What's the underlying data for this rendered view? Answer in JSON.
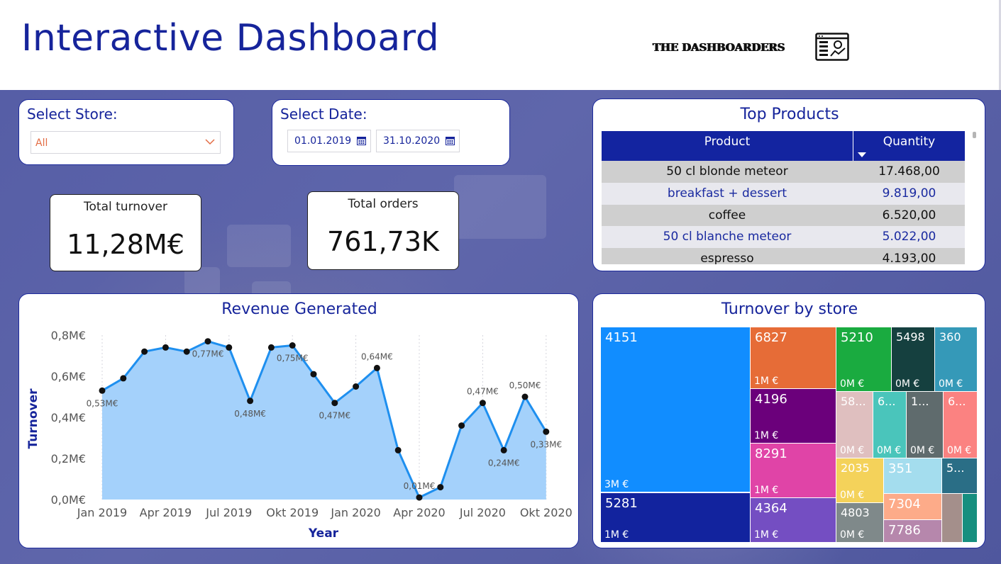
{
  "header": {
    "title": "Interactive Dashboard",
    "logo_text": "THE DASHBOARDERS"
  },
  "store_slicer": {
    "label": "Select Store:",
    "value": "All"
  },
  "date_slicer": {
    "label": "Select Date:",
    "start": "01.01.2019",
    "end": "31.10.2020"
  },
  "kpis": {
    "turnover": {
      "label": "Total turnover",
      "value": "11,28M€"
    },
    "orders": {
      "label": "Total orders",
      "value": "761,73K"
    }
  },
  "top_products": {
    "title": "Top Products",
    "columns": [
      "Product",
      "Quantity"
    ],
    "rows": [
      {
        "product": "50 cl blonde meteor",
        "quantity": "17.468,00"
      },
      {
        "product": "breakfast + dessert",
        "quantity": "9.819,00"
      },
      {
        "product": "coffee",
        "quantity": "6.520,00"
      },
      {
        "product": "50 cl blanche meteor",
        "quantity": "5.022,00"
      },
      {
        "product": "espresso",
        "quantity": "4.193,00"
      }
    ]
  },
  "colors": {
    "accent": "#16249b",
    "line": "#1e8fef",
    "area": "#a4d1fb"
  },
  "chart_data": {
    "type": "area",
    "title": "Revenue Generated",
    "xlabel": "Year",
    "ylabel": "Turnover",
    "ylim": [
      0,
      0.8
    ],
    "y_ticks": [
      "0,0M€",
      "0,2M€",
      "0,4M€",
      "0,6M€",
      "0,8M€"
    ],
    "x_ticks": [
      "Jan 2019",
      "Apr 2019",
      "Jul 2019",
      "Okt 2019",
      "Jan 2020",
      "Apr 2020",
      "Jul 2020",
      "Okt 2020"
    ],
    "x": [
      "2019-01",
      "2019-02",
      "2019-03",
      "2019-04",
      "2019-05",
      "2019-06",
      "2019-07",
      "2019-08",
      "2019-09",
      "2019-10",
      "2019-11",
      "2019-12",
      "2020-01",
      "2020-02",
      "2020-03",
      "2020-04",
      "2020-05",
      "2020-06",
      "2020-07",
      "2020-08",
      "2020-09",
      "2020-10"
    ],
    "series": [
      {
        "values": [
          0.53,
          0.59,
          0.72,
          0.74,
          0.72,
          0.77,
          0.74,
          0.48,
          0.74,
          0.75,
          0.61,
          0.47,
          0.55,
          0.64,
          0.24,
          0.01,
          0.06,
          0.36,
          0.47,
          0.24,
          0.5,
          0.33
        ]
      }
    ],
    "data_labels": [
      {
        "index": 0,
        "text": "0,53M€",
        "pos": "below"
      },
      {
        "index": 5,
        "text": "0,77M€",
        "pos": "below"
      },
      {
        "index": 7,
        "text": "0,48M€",
        "pos": "below"
      },
      {
        "index": 9,
        "text": "0,75M€",
        "pos": "below"
      },
      {
        "index": 11,
        "text": "0,47M€",
        "pos": "below"
      },
      {
        "index": 13,
        "text": "0,64M€",
        "pos": "above"
      },
      {
        "index": 15,
        "text": "0,01M€",
        "pos": "above"
      },
      {
        "index": 18,
        "text": "0,47M€",
        "pos": "above"
      },
      {
        "index": 19,
        "text": "0,24M€",
        "pos": "below"
      },
      {
        "index": 20,
        "text": "0,50M€",
        "pos": "above"
      },
      {
        "index": 21,
        "text": "0,33M€",
        "pos": "below"
      }
    ]
  },
  "treemap": {
    "title": "Turnover by store",
    "tiles": [
      {
        "label": "4151",
        "value": "3M €",
        "color": "#118dff"
      },
      {
        "label": "5281",
        "value": "1M €",
        "color": "#12239e"
      },
      {
        "label": "6827",
        "value": "1M €",
        "color": "#e66c37"
      },
      {
        "label": "4196",
        "value": "1M €",
        "color": "#6b007b"
      },
      {
        "label": "8291",
        "value": "1M €",
        "color": "#e044a7"
      },
      {
        "label": "4364",
        "value": "1M €",
        "color": "#744ec2"
      },
      {
        "label": "5210",
        "value": "0M €",
        "color": "#1aab40"
      },
      {
        "label": "5498",
        "value": "0M €",
        "color": "#15403f"
      },
      {
        "label": "360",
        "value": "0M €",
        "color": "#3599b8"
      },
      {
        "label": "58...",
        "value": "0M €",
        "color": "#dfbfbf"
      },
      {
        "label": "6...",
        "value": "0M €",
        "color": "#4ac5bb"
      },
      {
        "label": "1...",
        "value": "0M €",
        "color": "#5f6b6d"
      },
      {
        "label": "6...",
        "value": "0M €",
        "color": "#fb8281"
      },
      {
        "label": "2035",
        "value": "0M €",
        "color": "#f4d25a"
      },
      {
        "label": "351",
        "value": "",
        "color": "#a4ddee"
      },
      {
        "label": "5...",
        "value": "",
        "color": "#2a6e86"
      },
      {
        "label": "4803",
        "value": "0M €",
        "color": "#7f898a"
      },
      {
        "label": "7304",
        "value": "",
        "color": "#fdab89"
      },
      {
        "label": "7786",
        "value": "",
        "color": "#b687ac"
      },
      {
        "label": "",
        "value": "",
        "color": "#a48f8b"
      },
      {
        "label": "",
        "value": "",
        "color": "#168f7f"
      }
    ]
  }
}
